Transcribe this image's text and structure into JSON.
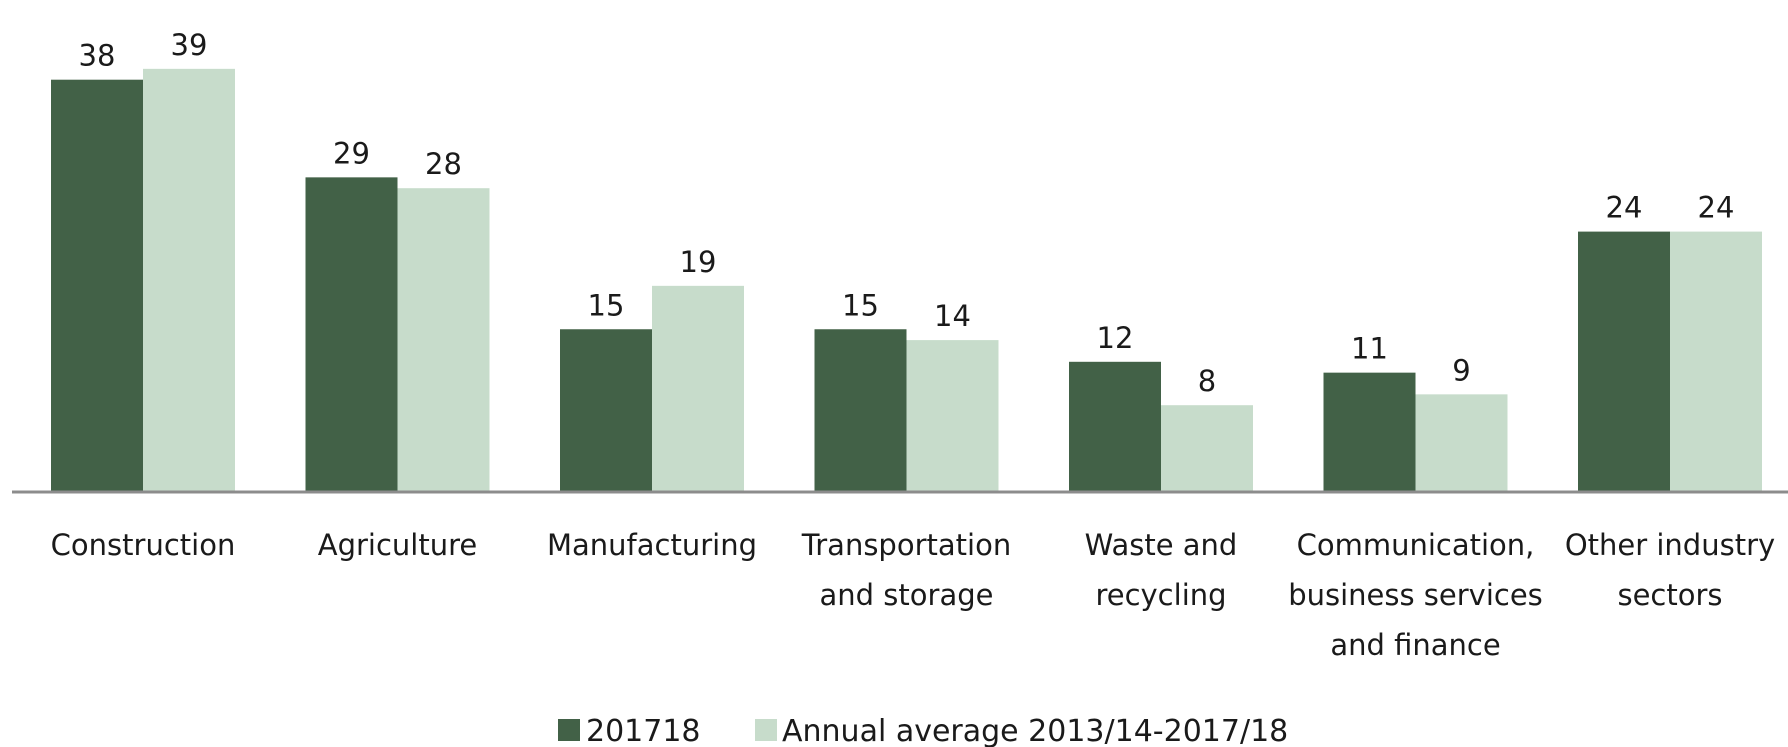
{
  "chart_data": {
    "type": "bar",
    "categories": [
      [
        "Construction"
      ],
      [
        "Agriculture"
      ],
      [
        "Manufacturing"
      ],
      [
        "Transportation",
        "and storage"
      ],
      [
        "Waste and",
        "recycling"
      ],
      [
        "Communication,",
        "business services",
        "and finance"
      ],
      [
        "Other industry",
        "sectors"
      ]
    ],
    "series": [
      {
        "name": "201718",
        "color": "#426147",
        "values": [
          38,
          29,
          15,
          15,
          12,
          11,
          24
        ]
      },
      {
        "name": "Annual average 2013/14-2017/18",
        "color": "#c7dccb",
        "values": [
          39,
          28,
          19,
          14,
          8,
          9,
          24
        ]
      }
    ],
    "title": "",
    "xlabel": "",
    "ylabel": "",
    "ylim": [
      0,
      45
    ],
    "grid": false,
    "legend_position": "bottom"
  },
  "colors": {
    "axis": "#8c8c8c"
  }
}
